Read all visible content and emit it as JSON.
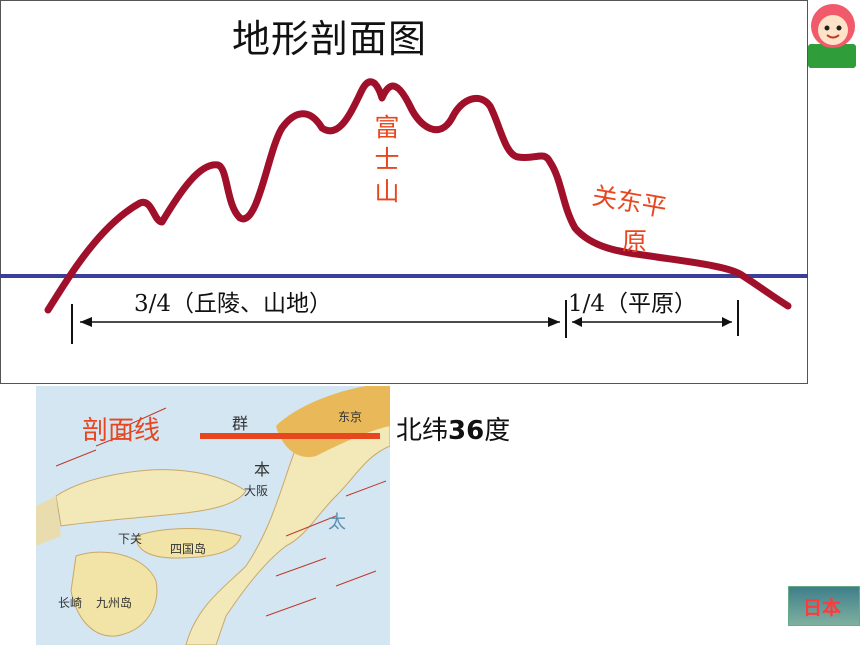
{
  "title": "地形剖面图",
  "peak_label": "富士山",
  "plain_label_line1": "关东平",
  "plain_label_line2": "原",
  "measure_hills": "3/4（丘陵、山地）",
  "measure_plain": "1/4（平原）",
  "section_line_label": "剖面线",
  "latitude_label_prefix": "北纬",
  "latitude_value": "36",
  "latitude_label_suffix": "度",
  "map_labels": [
    "群",
    "东京",
    "本",
    "大阪",
    "四国岛",
    "九州岛",
    "长崎",
    "下关",
    "太"
  ],
  "japan_button": "日本",
  "colors": {
    "profile_line": "#a0102a",
    "sea_level_line": "#3b3f9a",
    "accent_text": "#e8461f",
    "section_line": "#e8461f"
  }
}
